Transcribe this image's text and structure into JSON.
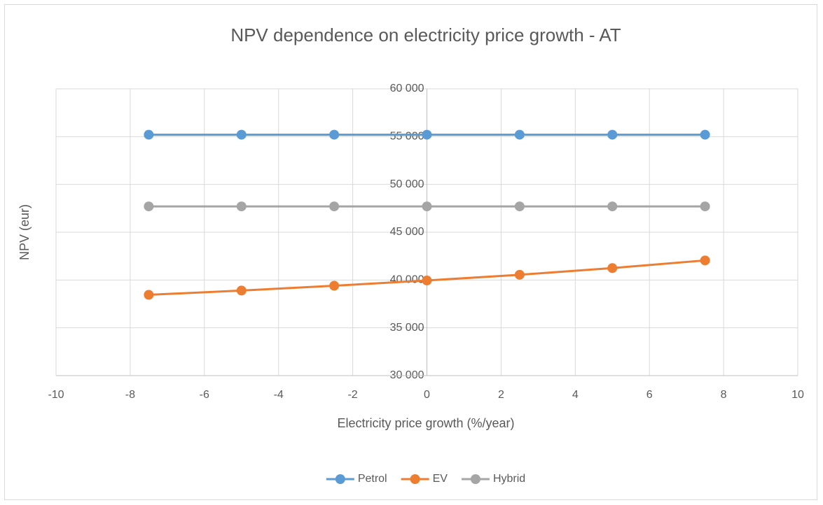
{
  "chart_data": {
    "type": "line",
    "title": "NPV dependence on electricity price growth - AT",
    "xlabel": "Electricity price growth (%/year)",
    "ylabel": "NPV (eur)",
    "x": [
      -7.5,
      -5,
      -2.5,
      0,
      2.5,
      5,
      7.5
    ],
    "series": [
      {
        "name": "Petrol",
        "color": "#5b9bd5",
        "values": [
          55200,
          55200,
          55200,
          55200,
          55200,
          55200,
          55200
        ]
      },
      {
        "name": "EV",
        "color": "#ed7d31",
        "values": [
          38450,
          38900,
          39400,
          39950,
          40550,
          41250,
          42050
        ]
      },
      {
        "name": "Hybrid",
        "color": "#a5a5a5",
        "values": [
          47700,
          47700,
          47700,
          47700,
          47700,
          47700,
          47700
        ]
      }
    ],
    "xlim": [
      -10,
      10
    ],
    "xticks": [
      -10,
      -8,
      -6,
      -4,
      -2,
      0,
      2,
      4,
      6,
      8,
      10
    ],
    "ylim": [
      30000,
      60000
    ],
    "yticks": [
      {
        "value": 30000,
        "label": "30 000"
      },
      {
        "value": 35000,
        "label": "35 000"
      },
      {
        "value": 40000,
        "label": "40 000"
      },
      {
        "value": 45000,
        "label": "45 000"
      },
      {
        "value": 50000,
        "label": "50 000"
      },
      {
        "value": 55000,
        "label": "55 000"
      },
      {
        "value": 60000,
        "label": "60 000"
      }
    ],
    "grid": true,
    "legend": "bottom"
  }
}
